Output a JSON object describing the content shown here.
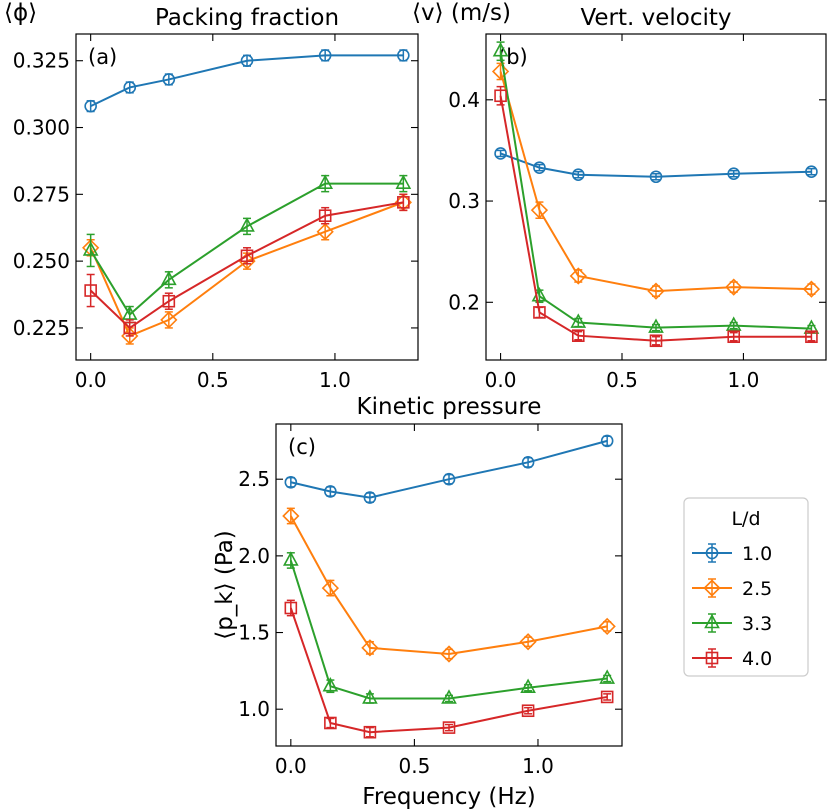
{
  "chart_data": {
    "type": "line",
    "x": [
      0.0,
      0.16,
      0.32,
      0.64,
      0.96,
      1.28
    ],
    "xlabel": "Frequency (Hz)",
    "xlim": [
      -0.06,
      1.34
    ],
    "xticks": [
      0.0,
      0.5,
      1.0
    ],
    "xtick_labels": [
      "0.0",
      "0.5",
      "1.0"
    ],
    "legend": {
      "title": "L/d",
      "placement": "right",
      "entries": [
        {
          "label": "1.0",
          "color": "#1f77b4",
          "marker": "circle"
        },
        {
          "label": "2.5",
          "color": "#ff7f0e",
          "marker": "diamond"
        },
        {
          "label": "3.3",
          "color": "#2ca02c",
          "marker": "triangle"
        },
        {
          "label": "4.0",
          "color": "#d62728",
          "marker": "square"
        }
      ]
    },
    "panels": [
      {
        "id": "a",
        "panel_label": "(a)",
        "title": "Packing fraction",
        "ylabel": "⟨ϕ⟩",
        "ylim": [
          0.213,
          0.335
        ],
        "yticks": [
          0.225,
          0.25,
          0.275,
          0.3,
          0.325
        ],
        "ytick_labels": [
          "0.225",
          "0.250",
          "0.275",
          "0.300",
          "0.325"
        ],
        "show_x_ticklabels": true,
        "series": [
          {
            "name": "1.0",
            "values": [
              0.308,
              0.315,
              0.318,
              0.325,
              0.327,
              0.327
            ],
            "errors": [
              0.002,
              0.002,
              0.002,
              0.002,
              0.002,
              0.002
            ]
          },
          {
            "name": "2.5",
            "values": [
              0.255,
              0.222,
              0.228,
              0.25,
              0.261,
              0.272
            ],
            "errors": [
              0.003,
              0.003,
              0.003,
              0.003,
              0.003,
              0.003
            ]
          },
          {
            "name": "3.3",
            "values": [
              0.254,
              0.23,
              0.243,
              0.263,
              0.279,
              0.279
            ],
            "errors": [
              0.006,
              0.003,
              0.003,
              0.003,
              0.003,
              0.003
            ]
          },
          {
            "name": "4.0",
            "values": [
              0.239,
              0.225,
              0.235,
              0.252,
              0.267,
              0.272
            ],
            "errors": [
              0.006,
              0.003,
              0.003,
              0.003,
              0.003,
              0.003
            ]
          }
        ]
      },
      {
        "id": "b",
        "panel_label": "(b)",
        "title": "Vert. velocity",
        "ylabel": "⟨v⟩ (m/s)",
        "ylim": [
          0.143,
          0.465
        ],
        "yticks": [
          0.2,
          0.3,
          0.4
        ],
        "ytick_labels": [
          "0.2",
          "0.3",
          "0.4"
        ],
        "show_x_ticklabels": true,
        "series": [
          {
            "name": "1.0",
            "values": [
              0.347,
              0.333,
              0.326,
              0.324,
              0.327,
              0.329
            ],
            "errors": [
              0.003,
              0.003,
              0.003,
              0.003,
              0.003,
              0.003
            ]
          },
          {
            "name": "2.5",
            "values": [
              0.428,
              0.291,
              0.226,
              0.211,
              0.215,
              0.213
            ],
            "errors": [
              0.008,
              0.008,
              0.006,
              0.005,
              0.005,
              0.005
            ]
          },
          {
            "name": "3.3",
            "values": [
              0.448,
              0.206,
              0.18,
              0.175,
              0.177,
              0.174
            ],
            "errors": [
              0.009,
              0.006,
              0.004,
              0.003,
              0.003,
              0.003
            ]
          },
          {
            "name": "4.0",
            "values": [
              0.404,
              0.19,
              0.167,
              0.162,
              0.166,
              0.166
            ],
            "errors": [
              0.009,
              0.005,
              0.004,
              0.004,
              0.004,
              0.004
            ]
          }
        ]
      },
      {
        "id": "c",
        "panel_label": "(c)",
        "title": "Kinetic pressure",
        "ylabel": "⟨p_k⟩ (Pa)",
        "ylim": [
          0.76,
          2.86
        ],
        "yticks": [
          1.0,
          1.5,
          2.0,
          2.5
        ],
        "ytick_labels": [
          "1.0",
          "1.5",
          "2.0",
          "2.5"
        ],
        "show_x_ticklabels": true,
        "series": [
          {
            "name": "1.0",
            "values": [
              2.48,
              2.42,
              2.38,
              2.5,
              2.61,
              2.75
            ],
            "errors": [
              0.03,
              0.03,
              0.03,
              0.03,
              0.03,
              0.03
            ]
          },
          {
            "name": "2.5",
            "values": [
              2.26,
              1.79,
              1.4,
              1.36,
              1.44,
              1.54
            ],
            "errors": [
              0.05,
              0.05,
              0.04,
              0.03,
              0.03,
              0.03
            ]
          },
          {
            "name": "3.3",
            "values": [
              1.97,
              1.15,
              1.07,
              1.07,
              1.14,
              1.2
            ],
            "errors": [
              0.05,
              0.04,
              0.03,
              0.02,
              0.02,
              0.02
            ]
          },
          {
            "name": "4.0",
            "values": [
              1.66,
              0.91,
              0.85,
              0.88,
              0.99,
              1.08
            ],
            "errors": [
              0.05,
              0.03,
              0.03,
              0.02,
              0.02,
              0.02
            ]
          }
        ]
      }
    ]
  }
}
